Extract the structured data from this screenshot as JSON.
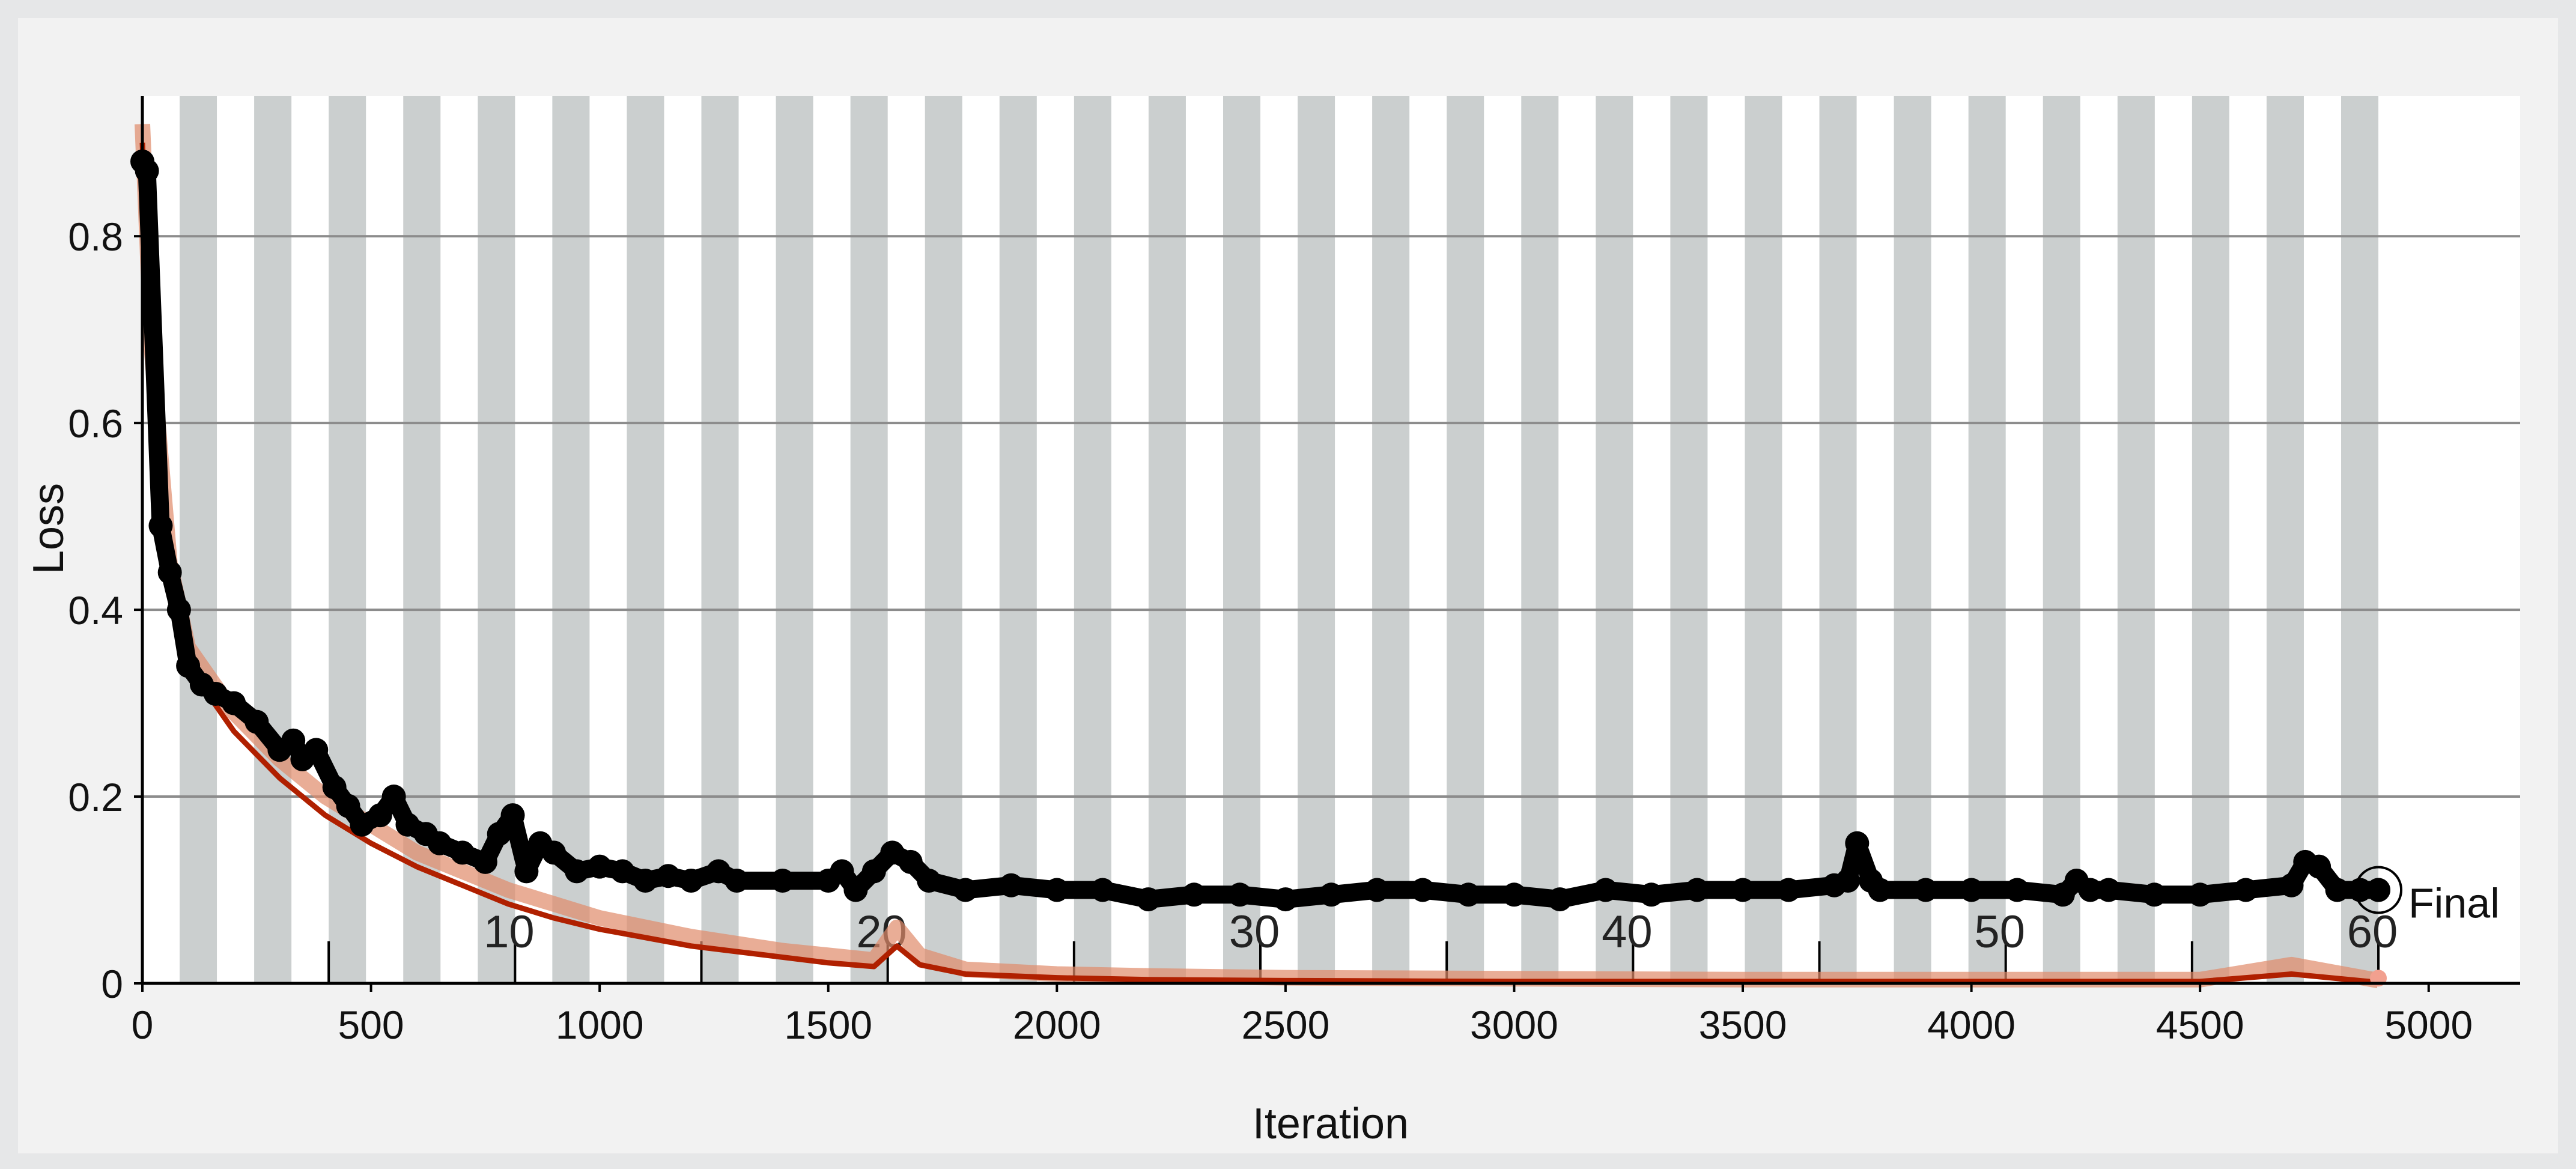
{
  "chart_data": {
    "type": "line",
    "title": "",
    "xlabel": "Iteration",
    "ylabel": "Loss",
    "xlim": [
      0,
      5200
    ],
    "ylim": [
      0,
      0.95
    ],
    "x_ticks": [
      0,
      500,
      1000,
      1500,
      2000,
      2500,
      3000,
      3500,
      4000,
      4500,
      5000
    ],
    "y_ticks": [
      0,
      0.2,
      0.4,
      0.6,
      0.8
    ],
    "y_tick_labels": [
      "0",
      "0.2",
      "0.4",
      "0.6",
      "0.8"
    ],
    "grid": "horizontal",
    "epoch_shading": {
      "iterations_per_epoch": 81.5,
      "epochs": 60,
      "colors": [
        "#ffffff",
        "#cbcfcf"
      ]
    },
    "epoch_labels": [
      {
        "label": "10",
        "epoch": 10
      },
      {
        "label": "20",
        "epoch": 20
      },
      {
        "label": "30",
        "epoch": 30
      },
      {
        "label": "40",
        "epoch": 40
      },
      {
        "label": "50",
        "epoch": 50
      },
      {
        "label": "60",
        "epoch": 60
      }
    ],
    "final_label": "Final",
    "final_iteration": 4890,
    "series": [
      {
        "role": "training-loss-raw",
        "color": "#e08a6a",
        "x": [
          0,
          20,
          60,
          100,
          200,
          300,
          400,
          500,
          600,
          700,
          800,
          900,
          1000,
          1200,
          1400,
          1500,
          1600,
          1650,
          1700,
          1800,
          2000,
          2200,
          2500,
          3000,
          3500,
          4000,
          4500,
          4700,
          4890
        ],
        "y": [
          0.92,
          0.68,
          0.45,
          0.36,
          0.29,
          0.24,
          0.2,
          0.17,
          0.14,
          0.12,
          0.1,
          0.085,
          0.07,
          0.05,
          0.035,
          0.03,
          0.025,
          0.06,
          0.03,
          0.015,
          0.01,
          0.008,
          0.006,
          0.005,
          0.004,
          0.004,
          0.004,
          0.02,
          0.003
        ]
      },
      {
        "role": "training-loss-smoothed",
        "color": "#b02000",
        "x": [
          0,
          20,
          60,
          100,
          200,
          300,
          400,
          500,
          600,
          700,
          800,
          900,
          1000,
          1200,
          1400,
          1500,
          1600,
          1650,
          1700,
          1800,
          2000,
          2200,
          2500,
          3000,
          3500,
          4000,
          4500,
          4700,
          4890
        ],
        "y": [
          0.9,
          0.65,
          0.42,
          0.34,
          0.27,
          0.22,
          0.18,
          0.15,
          0.125,
          0.105,
          0.085,
          0.07,
          0.058,
          0.04,
          0.028,
          0.022,
          0.018,
          0.04,
          0.02,
          0.01,
          0.006,
          0.004,
          0.003,
          0.002,
          0.002,
          0.002,
          0.002,
          0.01,
          0.001
        ]
      },
      {
        "role": "validation-loss",
        "color": "#000000",
        "x": [
          0,
          10,
          40,
          60,
          80,
          100,
          130,
          160,
          200,
          250,
          300,
          330,
          350,
          380,
          420,
          450,
          480,
          520,
          550,
          580,
          620,
          650,
          700,
          750,
          780,
          810,
          840,
          870,
          900,
          950,
          1000,
          1050,
          1100,
          1150,
          1200,
          1260,
          1300,
          1400,
          1500,
          1530,
          1560,
          1600,
          1640,
          1680,
          1720,
          1800,
          1900,
          2000,
          2100,
          2200,
          2300,
          2400,
          2500,
          2600,
          2700,
          2800,
          2900,
          3000,
          3100,
          3200,
          3300,
          3400,
          3500,
          3600,
          3700,
          3730,
          3750,
          3780,
          3800,
          3900,
          4000,
          4100,
          4200,
          4230,
          4260,
          4300,
          4400,
          4500,
          4600,
          4700,
          4730,
          4760,
          4800,
          4850,
          4890
        ],
        "y": [
          0.88,
          0.87,
          0.49,
          0.44,
          0.4,
          0.34,
          0.32,
          0.31,
          0.3,
          0.28,
          0.25,
          0.26,
          0.24,
          0.25,
          0.21,
          0.19,
          0.17,
          0.18,
          0.2,
          0.17,
          0.16,
          0.15,
          0.14,
          0.13,
          0.16,
          0.18,
          0.12,
          0.15,
          0.14,
          0.12,
          0.125,
          0.12,
          0.11,
          0.115,
          0.11,
          0.12,
          0.11,
          0.11,
          0.11,
          0.12,
          0.1,
          0.12,
          0.14,
          0.13,
          0.11,
          0.1,
          0.105,
          0.1,
          0.1,
          0.09,
          0.095,
          0.095,
          0.09,
          0.095,
          0.1,
          0.1,
          0.095,
          0.095,
          0.09,
          0.1,
          0.095,
          0.1,
          0.1,
          0.1,
          0.105,
          0.11,
          0.15,
          0.11,
          0.1,
          0.1,
          0.1,
          0.1,
          0.095,
          0.11,
          0.1,
          0.1,
          0.095,
          0.095,
          0.1,
          0.105,
          0.13,
          0.125,
          0.1,
          0.1,
          0.1
        ]
      }
    ]
  }
}
